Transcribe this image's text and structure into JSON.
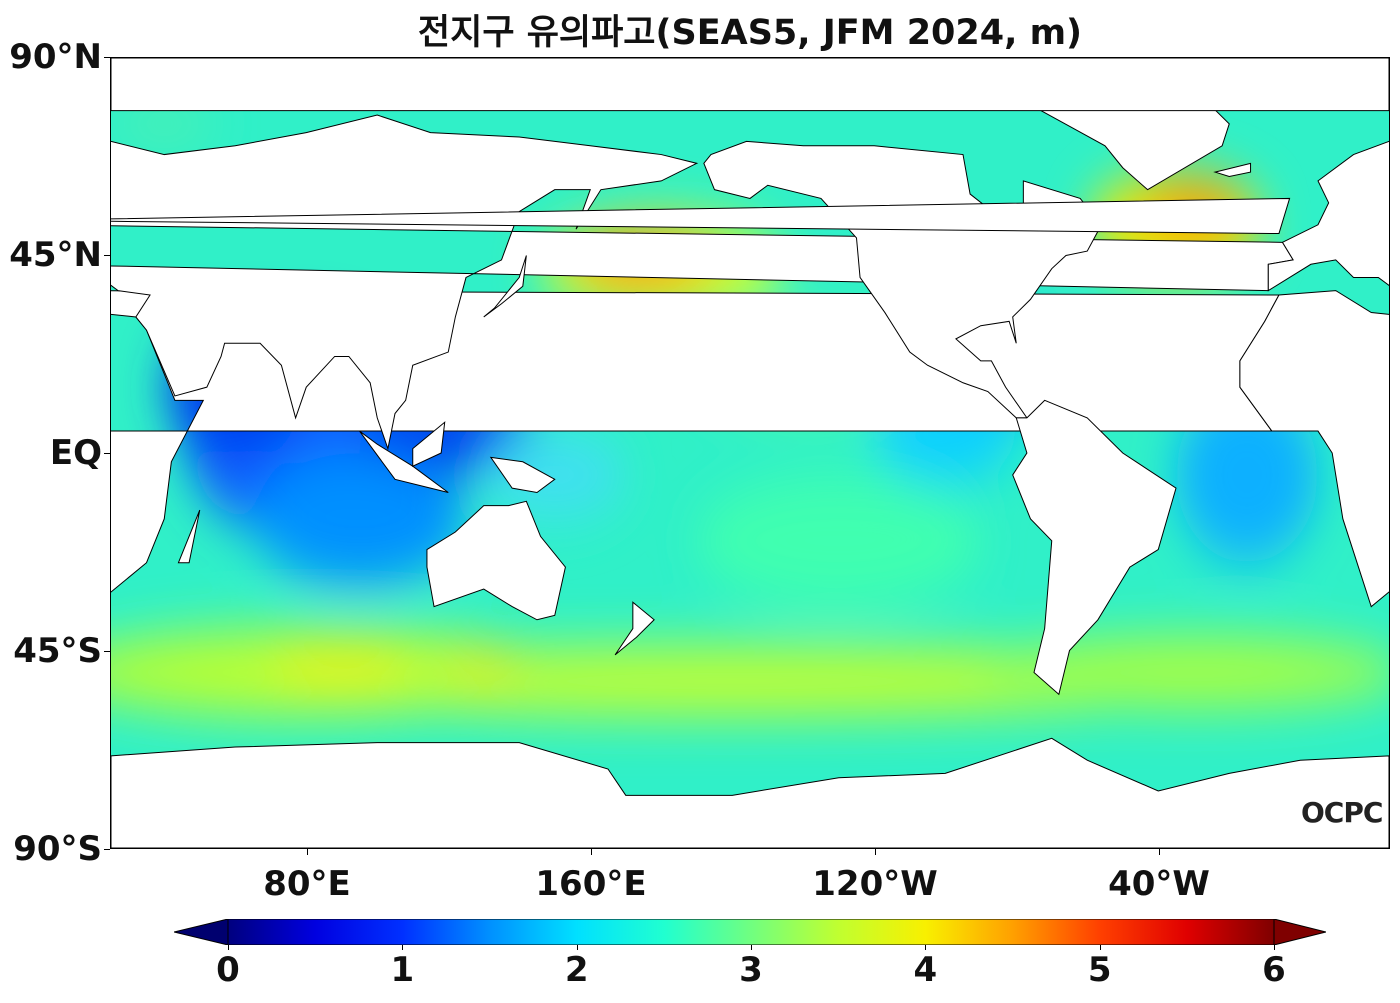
{
  "title": "전지구 유의파고(SEAS5, JFM 2024, m)",
  "map": {
    "lat_labels": [
      "90°N",
      "45°N",
      "EQ",
      "45°S",
      "90°S"
    ],
    "lon_labels": [
      "80°E",
      "160°E",
      "120°W",
      "40°W"
    ],
    "logo": "OCPC"
  },
  "colorbar": {
    "ticks": [
      "0",
      "1",
      "2",
      "3",
      "4",
      "5",
      "6"
    ],
    "range": [
      0,
      6
    ],
    "extend": "both",
    "colormap": [
      "#00007f",
      "#0000e0",
      "#0030ff",
      "#0090ff",
      "#00e0ff",
      "#20ffd0",
      "#70ff80",
      "#c0ff30",
      "#f8f000",
      "#ffa000",
      "#ff4000",
      "#e00000",
      "#7f0000"
    ],
    "under_color": "#00006f",
    "over_color": "#7f0000"
  }
}
